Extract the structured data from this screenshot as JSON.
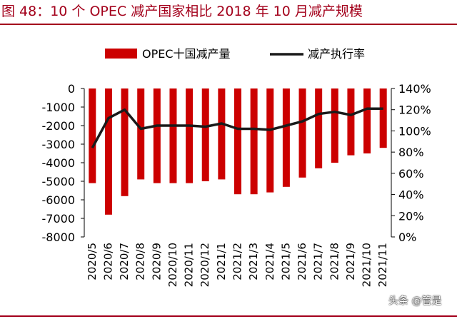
{
  "title": "图 48：10 个 OPEC 减产国家相比 2018 年 10 月减产规模",
  "watermark": "头条 @管是",
  "colors": {
    "title": "#a3001b",
    "bar": "#cc0000",
    "line": "#1a1a1a"
  },
  "chart_data": {
    "type": "bar+line",
    "categories": [
      "2020/5",
      "2020/6",
      "2020/7",
      "2020/8",
      "2020/9",
      "2020/10",
      "2020/11",
      "2020/12",
      "2021/1",
      "2021/2",
      "2021/3",
      "2021/4",
      "2021/5",
      "2021/6",
      "2021/7",
      "2021/8",
      "2021/9",
      "2021/10",
      "2021/11"
    ],
    "series": [
      {
        "name": "OPEC十国减产量",
        "type": "bar",
        "axis": "left",
        "values": [
          -5100,
          -6800,
          -5800,
          -4900,
          -5100,
          -5100,
          -5100,
          -5000,
          -4900,
          -5700,
          -5700,
          -5600,
          -5300,
          -4800,
          -4300,
          -4000,
          -3600,
          -3500,
          -3200
        ]
      },
      {
        "name": "减产执行率",
        "type": "line",
        "axis": "right",
        "values": [
          84,
          112,
          120,
          102,
          105,
          105,
          105,
          104,
          107,
          102,
          102,
          101,
          105,
          109,
          116,
          118,
          115,
          121,
          121
        ]
      }
    ],
    "y_left": {
      "ylim": [
        -8000,
        0
      ],
      "ticks": [
        0,
        -1000,
        -2000,
        -3000,
        -4000,
        -5000,
        -6000,
        -7000,
        -8000
      ],
      "tick_labels": [
        "0",
        "-1000",
        "-2000",
        "-3000",
        "-4000",
        "-5000",
        "-6000",
        "-7000",
        "-8000"
      ]
    },
    "y_right": {
      "ylim": [
        0,
        140
      ],
      "ticks": [
        140,
        120,
        100,
        80,
        60,
        40,
        20,
        0
      ],
      "tick_labels": [
        "140%",
        "120%",
        "100%",
        "80%",
        "60%",
        "40%",
        "20%",
        "0%"
      ]
    },
    "legend": {
      "position": "top",
      "items": [
        {
          "label": "OPEC十国减产量",
          "marker": "bar"
        },
        {
          "label": "减产执行率",
          "marker": "line"
        }
      ]
    },
    "grid": false
  }
}
